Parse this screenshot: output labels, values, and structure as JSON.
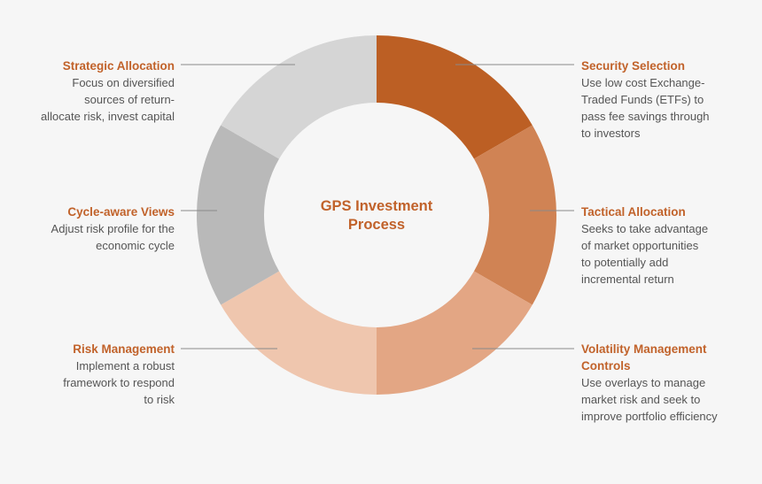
{
  "center_title": "GPS Investment\nProcess",
  "segments": [
    {
      "title": "Security Selection",
      "description": "Use low cost Exchange-\nTraded Funds (ETFs) to\npass fee savings through\nto investors",
      "color": "#bc5f24"
    },
    {
      "title": "Tactical Allocation",
      "description": "Seeks to take advantage\nof market opportunities\nto potentially add\nincremental return",
      "color": "#d08354"
    },
    {
      "title": "Volatility Management\nControls",
      "description": "Use overlays to manage\nmarket risk and seek to\nimprove portfolio efficiency",
      "color": "#e3a684"
    },
    {
      "title": "Risk Management",
      "description": "Implement a robust\nframework to respond\nto risk",
      "color": "#efc6ae"
    },
    {
      "title": "Cycle-aware Views",
      "description": "Adjust risk profile for the\neconomic cycle",
      "color": "#b9b9b9"
    },
    {
      "title": "Strategic Allocation",
      "description": "Focus on diversified\nsources of return-\nallocate risk, invest capital",
      "color": "#d5d5d5"
    }
  ]
}
